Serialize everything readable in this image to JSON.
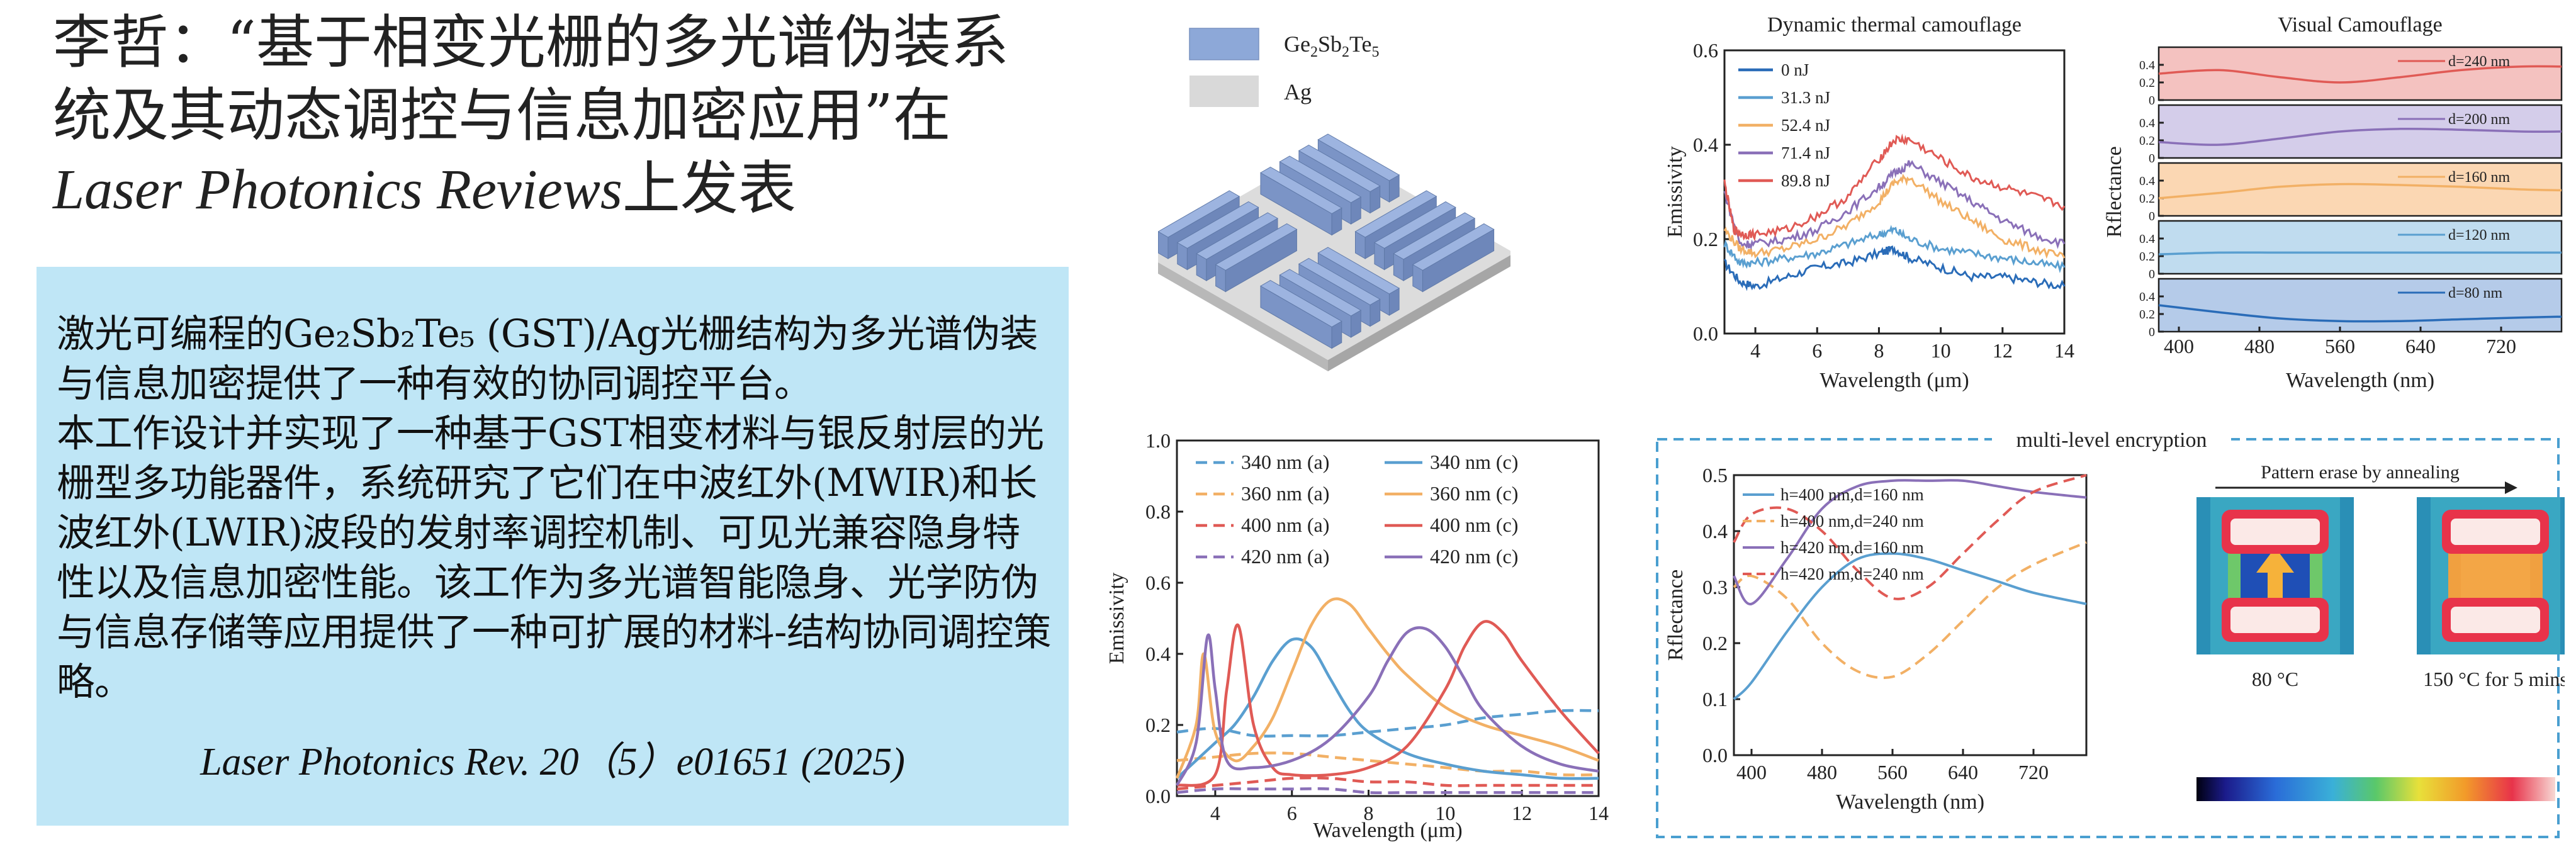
{
  "title": {
    "line1": "李哲：“基于相变光栅的多光谱伪装系",
    "line2": "统及其动态调控与信息加密应用”在",
    "journal_italic": "Laser Photonics Reviews",
    "tail": "上发表"
  },
  "abstract": {
    "paragraph1": "激光可编程的Ge₂Sb₂Te₅ (GST)/Ag光栅结构为多光谱伪装与信息加密提供了一种有效的协同调控平台。",
    "paragraph2": "本工作设计并实现了一种基于GST相变材料与银反射层的光栅型多功能器件，系统研究了它们在中波红外(MWIR)和长波红外(LWIR)波段的发射率调控机制、可见光兼容隐身特性以及信息加密性能。该工作为多光谱智能隐身、光学防伪与信息存储等应用提供了一种可扩展的材料-结构协同调控策略。",
    "citation": "Laser Photonics Rev. 20（5）e01651 (2025)"
  },
  "structure_legend": {
    "gst_label_parts": [
      "Ge",
      "2",
      "Sb",
      "2",
      "Te",
      "5"
    ],
    "ag_label": "Ag",
    "gst_color": "#8da8d8",
    "ag_color": "#d9d9d9"
  },
  "colors": {
    "c340": "#5a9fd0",
    "c360": "#f2b065",
    "c400": "#e05a55",
    "c420": "#8a70b8",
    "c0nJ": "#2a6cb8",
    "c31": "#5a9fd0",
    "c52": "#f2b065",
    "c71": "#8a70b8",
    "c89": "#e05a55",
    "dashed_frame": "#4a9fd0"
  },
  "chart_data": [
    {
      "id": "emissivity-chart",
      "type": "line",
      "xlabel": "Wavelength (μm)",
      "ylabel": "Emissivity",
      "xlim": [
        3,
        14
      ],
      "ylim": [
        0,
        1.0
      ],
      "xticks": [
        4,
        6,
        8,
        10,
        12,
        14
      ],
      "yticks": [
        0.0,
        0.2,
        0.4,
        0.6,
        0.8,
        1.0
      ],
      "legend_position": "top",
      "series": [
        {
          "name": "340 nm (a)",
          "color": "c340",
          "dash": true,
          "x": [
            3,
            4,
            5,
            6,
            7,
            8,
            9,
            10,
            11,
            12,
            13,
            14
          ],
          "y": [
            0.18,
            0.19,
            0.17,
            0.17,
            0.17,
            0.18,
            0.19,
            0.2,
            0.22,
            0.23,
            0.24,
            0.24
          ]
        },
        {
          "name": "360 nm (a)",
          "color": "c360",
          "dash": true,
          "x": [
            3,
            4,
            5,
            6,
            7,
            8,
            9,
            10,
            11,
            12,
            13,
            14
          ],
          "y": [
            0.1,
            0.11,
            0.12,
            0.12,
            0.11,
            0.1,
            0.09,
            0.08,
            0.07,
            0.07,
            0.06,
            0.06
          ]
        },
        {
          "name": "400 nm (a)",
          "color": "c400",
          "dash": true,
          "x": [
            3,
            4,
            5,
            6,
            7,
            8,
            9,
            10,
            11,
            12,
            13,
            14
          ],
          "y": [
            0.02,
            0.03,
            0.04,
            0.05,
            0.05,
            0.04,
            0.04,
            0.03,
            0.03,
            0.03,
            0.03,
            0.03
          ]
        },
        {
          "name": "420 nm (a)",
          "color": "c420",
          "dash": true,
          "x": [
            3,
            4,
            5,
            6,
            7,
            8,
            9,
            10,
            11,
            12,
            13,
            14
          ],
          "y": [
            0.01,
            0.02,
            0.02,
            0.02,
            0.02,
            0.01,
            0.01,
            0.01,
            0.01,
            0.01,
            0.01,
            0.01
          ]
        },
        {
          "name": "340 nm (c)",
          "color": "c340",
          "dash": false,
          "x": [
            3,
            3.5,
            4,
            4.5,
            5,
            5.5,
            6,
            6.5,
            7,
            7.5,
            8,
            9,
            10,
            11,
            12,
            13,
            14
          ],
          "y": [
            0.05,
            0.1,
            0.15,
            0.2,
            0.28,
            0.38,
            0.44,
            0.42,
            0.33,
            0.24,
            0.18,
            0.12,
            0.09,
            0.07,
            0.06,
            0.05,
            0.05
          ]
        },
        {
          "name": "360 nm (c)",
          "color": "c360",
          "dash": false,
          "x": [
            3,
            3.5,
            3.7,
            4,
            4.5,
            5,
            5.5,
            6,
            6.5,
            7,
            7.5,
            8,
            8.5,
            9,
            10,
            11,
            12,
            13,
            14
          ],
          "y": [
            0.05,
            0.2,
            0.4,
            0.18,
            0.1,
            0.14,
            0.22,
            0.35,
            0.48,
            0.55,
            0.54,
            0.47,
            0.4,
            0.34,
            0.25,
            0.2,
            0.17,
            0.14,
            0.1
          ]
        },
        {
          "name": "400 nm (c)",
          "color": "c400",
          "dash": false,
          "x": [
            3,
            4,
            4.3,
            4.6,
            5,
            5.5,
            6,
            7,
            8,
            9,
            10,
            10.5,
            11,
            11.5,
            12,
            13,
            14
          ],
          "y": [
            0.03,
            0.06,
            0.3,
            0.48,
            0.2,
            0.08,
            0.06,
            0.06,
            0.08,
            0.14,
            0.3,
            0.42,
            0.49,
            0.46,
            0.38,
            0.24,
            0.12
          ]
        },
        {
          "name": "420 nm (c)",
          "color": "c420",
          "dash": false,
          "x": [
            3,
            3.5,
            3.8,
            4.0,
            4.3,
            5,
            6,
            7,
            8,
            8.5,
            9,
            9.5,
            10,
            10.5,
            11,
            12,
            13,
            14
          ],
          "y": [
            0.03,
            0.15,
            0.45,
            0.3,
            0.1,
            0.08,
            0.1,
            0.16,
            0.28,
            0.38,
            0.46,
            0.47,
            0.42,
            0.33,
            0.24,
            0.14,
            0.09,
            0.07
          ]
        }
      ]
    },
    {
      "id": "dynamic-chart",
      "type": "line",
      "title": "Dynamic thermal camouflage",
      "xlabel": "Wavelength (μm)",
      "ylabel": "Emissivity",
      "xlim": [
        3,
        14
      ],
      "ylim": [
        0,
        0.6
      ],
      "xticks": [
        4,
        6,
        8,
        10,
        12,
        14
      ],
      "yticks": [
        0.0,
        0.2,
        0.4,
        0.6
      ],
      "legend_position": "top-left",
      "series": [
        {
          "name": "0 nJ",
          "color": "c0nJ",
          "x": [
            3,
            3.5,
            4,
            5,
            6,
            7,
            8,
            8.5,
            9,
            10,
            11,
            12,
            13,
            14
          ],
          "y": [
            0.15,
            0.11,
            0.1,
            0.12,
            0.14,
            0.15,
            0.17,
            0.18,
            0.16,
            0.14,
            0.12,
            0.12,
            0.11,
            0.1
          ]
        },
        {
          "name": "31.3 nJ",
          "color": "c31",
          "x": [
            3,
            3.5,
            4,
            5,
            6,
            7,
            8,
            8.5,
            9,
            10,
            11,
            12,
            13,
            14
          ],
          "y": [
            0.19,
            0.15,
            0.15,
            0.16,
            0.17,
            0.19,
            0.21,
            0.22,
            0.2,
            0.18,
            0.17,
            0.16,
            0.15,
            0.14
          ]
        },
        {
          "name": "52.4 nJ",
          "color": "c52",
          "x": [
            3,
            3.5,
            4,
            5,
            6,
            7,
            8,
            8.5,
            9,
            10,
            11,
            12,
            13,
            14
          ],
          "y": [
            0.22,
            0.18,
            0.17,
            0.18,
            0.2,
            0.23,
            0.28,
            0.32,
            0.33,
            0.28,
            0.24,
            0.2,
            0.18,
            0.16
          ]
        },
        {
          "name": "71.4 nJ",
          "color": "c71",
          "x": [
            3,
            3.5,
            4,
            5,
            6,
            7,
            8,
            8.5,
            9,
            10,
            11,
            12,
            13,
            14
          ],
          "y": [
            0.3,
            0.19,
            0.19,
            0.2,
            0.22,
            0.26,
            0.31,
            0.34,
            0.36,
            0.32,
            0.28,
            0.24,
            0.21,
            0.19
          ]
        },
        {
          "name": "89.8 nJ",
          "color": "c89",
          "x": [
            3,
            3.3,
            3.6,
            4,
            5,
            6,
            7,
            8,
            8.5,
            9,
            10,
            11,
            12,
            13,
            14
          ],
          "y": [
            0.32,
            0.22,
            0.21,
            0.21,
            0.22,
            0.25,
            0.29,
            0.37,
            0.41,
            0.41,
            0.37,
            0.33,
            0.31,
            0.29,
            0.27
          ]
        }
      ]
    },
    {
      "id": "visual-chart",
      "type": "line",
      "title": "Visual Camouflage",
      "xlabel": "Wavelength (nm)",
      "ylabel": "Rflectance",
      "xlim": [
        380,
        780
      ],
      "xticks": [
        400,
        480,
        560,
        640,
        720
      ],
      "panel_yticks": [
        0,
        0.2,
        0.4
      ],
      "panel_ylim": [
        0,
        0.6
      ],
      "panels": [
        {
          "label": "d=240 nm",
          "bg": "#f4c2c0",
          "line": "#e05a55",
          "x": [
            380,
            440,
            500,
            560,
            620,
            680,
            740,
            780
          ],
          "y": [
            0.3,
            0.34,
            0.26,
            0.2,
            0.26,
            0.34,
            0.38,
            0.38
          ]
        },
        {
          "label": "d=200 nm",
          "bg": "#d4cdea",
          "line": "#8a70b8",
          "x": [
            380,
            440,
            500,
            560,
            620,
            680,
            740,
            780
          ],
          "y": [
            0.18,
            0.15,
            0.22,
            0.3,
            0.33,
            0.32,
            0.3,
            0.3
          ]
        },
        {
          "label": "d=160 nm",
          "bg": "#fbd7b3",
          "line": "#f2b065",
          "x": [
            380,
            440,
            500,
            560,
            620,
            680,
            740,
            780
          ],
          "y": [
            0.2,
            0.26,
            0.33,
            0.36,
            0.35,
            0.33,
            0.3,
            0.29
          ]
        },
        {
          "label": "d=120 nm",
          "bg": "#c0dcef",
          "line": "#5a9fd0",
          "x": [
            380,
            440,
            500,
            560,
            620,
            680,
            740,
            780
          ],
          "y": [
            0.22,
            0.24,
            0.24,
            0.24,
            0.24,
            0.24,
            0.24,
            0.24
          ]
        },
        {
          "label": "d=80 nm",
          "bg": "#b5cbe9",
          "line": "#2a6cb8",
          "x": [
            380,
            440,
            500,
            560,
            620,
            680,
            740,
            780
          ],
          "y": [
            0.3,
            0.22,
            0.15,
            0.12,
            0.12,
            0.14,
            0.16,
            0.17
          ]
        }
      ]
    },
    {
      "id": "encryption-chart",
      "type": "line",
      "xlabel": "Wavelength (nm)",
      "ylabel": "Rflectance",
      "xlim": [
        380,
        780
      ],
      "ylim": [
        0,
        0.5
      ],
      "xticks": [
        400,
        480,
        560,
        640,
        720
      ],
      "yticks": [
        0.0,
        0.1,
        0.2,
        0.3,
        0.4,
        0.5
      ],
      "legend_position": "top-left",
      "series": [
        {
          "name": "h=400 nm,d=160 nm",
          "color": "c340",
          "dash": false,
          "x": [
            380,
            400,
            440,
            480,
            520,
            560,
            600,
            640,
            680,
            720,
            780
          ],
          "y": [
            0.1,
            0.13,
            0.22,
            0.3,
            0.35,
            0.36,
            0.35,
            0.33,
            0.31,
            0.29,
            0.27
          ]
        },
        {
          "name": "h=400 nm,d=240 nm",
          "color": "c360",
          "dash": true,
          "x": [
            380,
            400,
            440,
            480,
            520,
            560,
            600,
            640,
            680,
            720,
            780
          ],
          "y": [
            0.3,
            0.32,
            0.28,
            0.2,
            0.15,
            0.14,
            0.18,
            0.24,
            0.3,
            0.34,
            0.38
          ]
        },
        {
          "name": "h=420 nm,d=160 nm",
          "color": "c420",
          "dash": false,
          "x": [
            380,
            400,
            440,
            480,
            520,
            560,
            600,
            640,
            680,
            720,
            780
          ],
          "y": [
            0.32,
            0.27,
            0.35,
            0.44,
            0.48,
            0.49,
            0.49,
            0.49,
            0.48,
            0.47,
            0.46
          ]
        },
        {
          "name": "h=420 nm,d=240 nm",
          "color": "c400",
          "dash": true,
          "x": [
            380,
            400,
            440,
            480,
            520,
            560,
            600,
            640,
            680,
            720,
            780
          ],
          "y": [
            0.38,
            0.43,
            0.44,
            0.4,
            0.33,
            0.28,
            0.3,
            0.36,
            0.42,
            0.47,
            0.5
          ]
        }
      ]
    }
  ],
  "encryption": {
    "frame_title": "multi-level encryption",
    "pattern_label": "Pattern erase by annealing",
    "caption_80": "80 °C",
    "caption_150": "150 °C  for 5 mins"
  }
}
